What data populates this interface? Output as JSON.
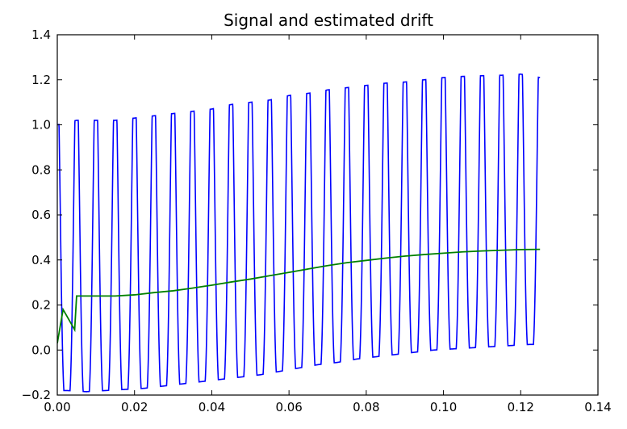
{
  "chart_data": {
    "type": "line",
    "title": "Signal and estimated drift",
    "xlabel": "",
    "ylabel": "",
    "xlim": [
      0.0,
      0.14
    ],
    "ylim": [
      -0.2,
      1.4
    ],
    "x_ticks": [
      "0.00",
      "0.02",
      "0.04",
      "0.06",
      "0.08",
      "0.10",
      "0.12",
      "0.14"
    ],
    "y_ticks": [
      "−0.2",
      "0.0",
      "0.2",
      "0.4",
      "0.6",
      "0.8",
      "1.0",
      "1.2",
      "1.4"
    ],
    "x_tick_values": [
      0.0,
      0.02,
      0.04,
      0.06,
      0.08,
      0.1,
      0.12,
      0.14
    ],
    "y_tick_values": [
      -0.2,
      0.0,
      0.2,
      0.4,
      0.6,
      0.8,
      1.0,
      1.2,
      1.4
    ],
    "grid": false,
    "legend": "none",
    "series": [
      {
        "color": "#0000ff",
        "signal": {
          "x_start": 0.0,
          "x_end": 0.125,
          "period": 0.005,
          "peak_phase_offset": 0.0,
          "peaks": [
            [
              0.0,
              1.0
            ],
            [
              0.005,
              1.02
            ],
            [
              0.01,
              1.02
            ],
            [
              0.015,
              1.02
            ],
            [
              0.02,
              1.03
            ],
            [
              0.025,
              1.04
            ],
            [
              0.03,
              1.05
            ],
            [
              0.035,
              1.06
            ],
            [
              0.04,
              1.07
            ],
            [
              0.045,
              1.09
            ],
            [
              0.05,
              1.1
            ],
            [
              0.055,
              1.11
            ],
            [
              0.06,
              1.13
            ],
            [
              0.065,
              1.14
            ],
            [
              0.07,
              1.155
            ],
            [
              0.075,
              1.165
            ],
            [
              0.08,
              1.175
            ],
            [
              0.085,
              1.185
            ],
            [
              0.09,
              1.19
            ],
            [
              0.095,
              1.2
            ],
            [
              0.1,
              1.21
            ],
            [
              0.105,
              1.215
            ],
            [
              0.11,
              1.218
            ],
            [
              0.115,
              1.22
            ],
            [
              0.12,
              1.225
            ],
            [
              0.125,
              1.21
            ]
          ],
          "troughs": [
            [
              0.0025,
              -0.18
            ],
            [
              0.0075,
              -0.185
            ],
            [
              0.0125,
              -0.18
            ],
            [
              0.0175,
              -0.175
            ],
            [
              0.0225,
              -0.17
            ],
            [
              0.0275,
              -0.16
            ],
            [
              0.0325,
              -0.15
            ],
            [
              0.0375,
              -0.14
            ],
            [
              0.0425,
              -0.13
            ],
            [
              0.0475,
              -0.12
            ],
            [
              0.0525,
              -0.11
            ],
            [
              0.0575,
              -0.095
            ],
            [
              0.0625,
              -0.08
            ],
            [
              0.0675,
              -0.065
            ],
            [
              0.0725,
              -0.055
            ],
            [
              0.0775,
              -0.04
            ],
            [
              0.0825,
              -0.03
            ],
            [
              0.0875,
              -0.02
            ],
            [
              0.0925,
              -0.01
            ],
            [
              0.0975,
              0.0
            ],
            [
              0.1025,
              0.005
            ],
            [
              0.1075,
              0.01
            ],
            [
              0.1125,
              0.015
            ],
            [
              0.1175,
              0.02
            ],
            [
              0.1225,
              0.025
            ]
          ]
        }
      },
      {
        "color": "#008000",
        "x": [
          0.0,
          0.0015,
          0.0045,
          0.005,
          0.01,
          0.015,
          0.02,
          0.025,
          0.03,
          0.035,
          0.04,
          0.045,
          0.05,
          0.055,
          0.06,
          0.065,
          0.07,
          0.075,
          0.08,
          0.085,
          0.09,
          0.095,
          0.1,
          0.105,
          0.11,
          0.115,
          0.12,
          0.125
        ],
        "y": [
          0.03,
          0.18,
          0.09,
          0.24,
          0.24,
          0.24,
          0.245,
          0.255,
          0.263,
          0.275,
          0.288,
          0.302,
          0.315,
          0.33,
          0.345,
          0.36,
          0.375,
          0.388,
          0.398,
          0.408,
          0.417,
          0.424,
          0.43,
          0.436,
          0.44,
          0.443,
          0.446,
          0.447
        ]
      }
    ]
  }
}
